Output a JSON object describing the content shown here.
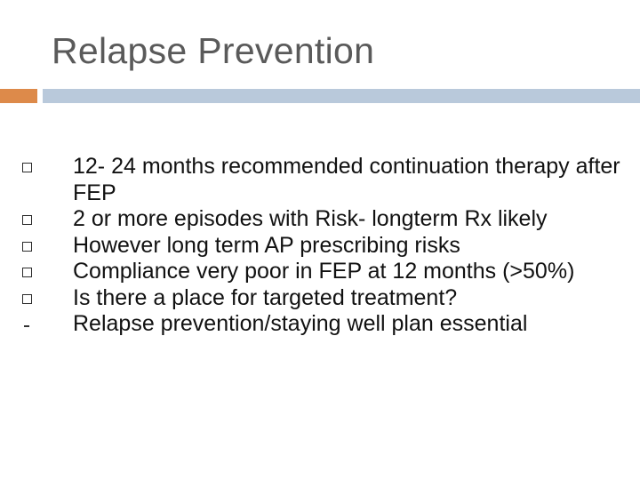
{
  "slide": {
    "title": "Relapse Prevention",
    "bullets": [
      {
        "text": "12- 24 months recommended continuation therapy after FEP",
        "icon": "checkbox-square-icon"
      },
      {
        "text": "2 or more episodes with Risk- longterm Rx likely",
        "icon": "checkbox-square-icon"
      },
      {
        "text": "However long term AP prescribing  risks",
        "icon": "checkbox-square-icon"
      },
      {
        "text": "Compliance very poor in FEP at 12 months (>50%)",
        "icon": "checkbox-square-icon"
      },
      {
        "text": "Is there a place for targeted treatment?",
        "icon": "checkbox-square-icon"
      },
      {
        "text": "Relapse prevention/staying well plan essential",
        "icon": "dash-icon"
      }
    ]
  },
  "colors": {
    "title": "#5a5a5a",
    "accent_bar": "#dd8a4a",
    "rule_bar": "#b9c9db",
    "body_text": "#111111"
  }
}
